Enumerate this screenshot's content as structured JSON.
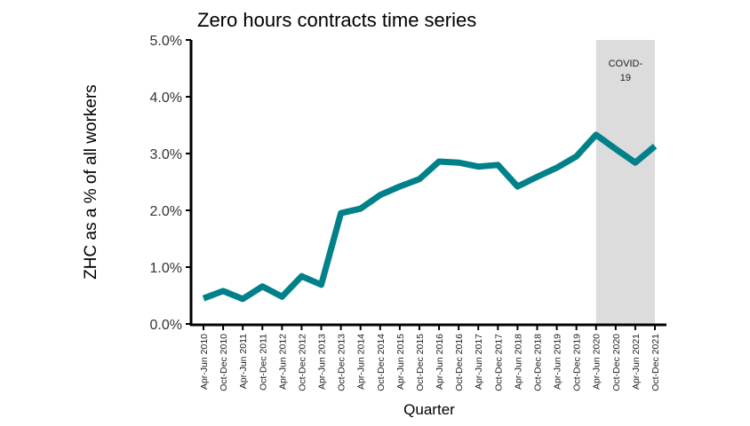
{
  "chart_data": {
    "type": "line",
    "title": "Zero hours contracts time series",
    "xlabel": "Quarter",
    "ylabel": "ZHC as a % of all workers",
    "ylim": [
      0,
      5
    ],
    "yticks": [
      "0.0%",
      "1.0%",
      "2.0%",
      "3.0%",
      "4.0%",
      "5.0%"
    ],
    "grid": false,
    "categories": [
      "Apr-Jun 2010",
      "Oct-Dec 2010",
      "Apr-Jun 2011",
      "Oct-Dec 2011",
      "Apr-Jun 2012",
      "Oct-Dec 2012",
      "Apr-Jun 2013",
      "Oct-Dec 2013",
      "Apr-Jun 2014",
      "Oct-Dec 2014",
      "Apr-Jun 2015",
      "Oct-Dec 2015",
      "Apr-Jun 2016",
      "Oct-Dec 2016",
      "Apr-Jun 2017",
      "Oct-Dec 2017",
      "Apr-Jun 2018",
      "Oct-Dec 2018",
      "Apr-Jun 2019",
      "Oct-Dec 2019",
      "Apr-Jun 2020",
      "Oct-Dec 2020",
      "Apr-Jun 2021",
      "Oct-Dec 2021"
    ],
    "series": [
      {
        "name": "ZHC",
        "color": "#00818a",
        "values": [
          0.45,
          0.58,
          0.44,
          0.66,
          0.48,
          0.84,
          0.69,
          1.95,
          2.03,
          2.27,
          2.42,
          2.55,
          2.86,
          2.84,
          2.77,
          2.8,
          2.42,
          2.59,
          2.75,
          2.95,
          3.33,
          3.08,
          2.84,
          3.13
        ]
      }
    ],
    "annotations": [
      {
        "text_line1": "COVID-",
        "text_line2": "19",
        "from": "Apr-Jun 2020",
        "to": "Oct-Dec 2021",
        "color": "#dcdcdc"
      }
    ]
  }
}
